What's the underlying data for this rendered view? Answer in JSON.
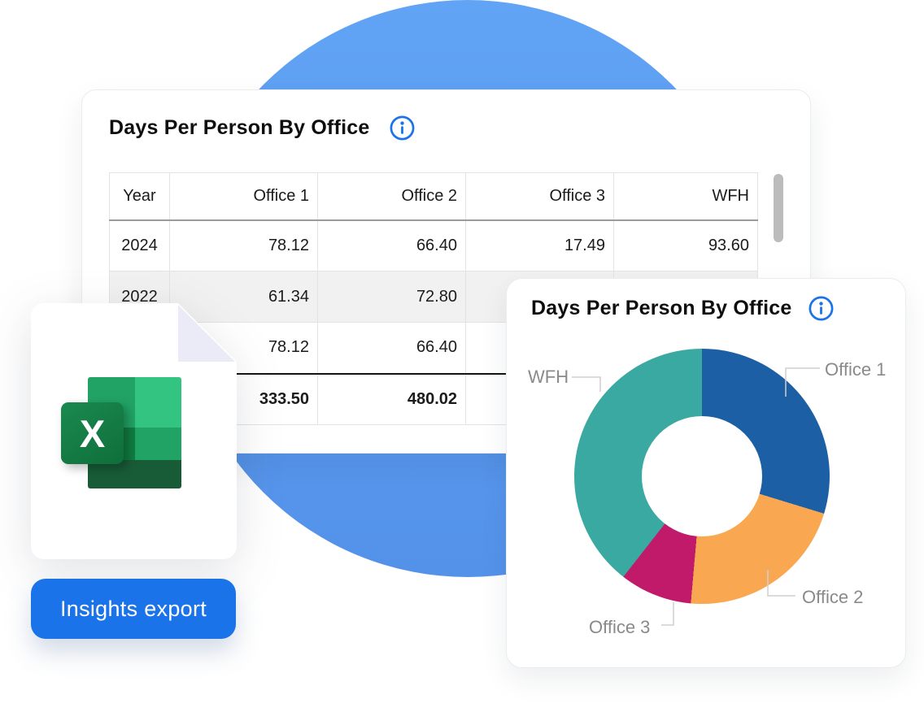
{
  "table_card": {
    "title": "Days Per Person By Office",
    "table": {
      "headers": [
        "Year",
        "Office 1",
        "Office 2",
        "Office 3",
        "WFH"
      ],
      "rows": [
        {
          "cells": [
            "2024",
            "78.12",
            "66.40",
            "17.49",
            "93.60"
          ],
          "zebra": false,
          "total": false
        },
        {
          "cells": [
            "2022",
            "61.34",
            "72.80",
            "",
            ""
          ],
          "zebra": true,
          "total": false
        },
        {
          "cells": [
            "",
            "78.12",
            "66.40",
            "",
            ""
          ],
          "zebra": false,
          "total": false
        },
        {
          "cells": [
            "",
            "333.50",
            "480.02",
            "",
            ""
          ],
          "zebra": false,
          "total": true
        }
      ]
    }
  },
  "chart_card": {
    "title": "Days Per Person By Office"
  },
  "chart_data": {
    "type": "pie",
    "donut": true,
    "title": "Days Per Person By Office",
    "start_angle_deg": 0,
    "legend_position": "outside-labels",
    "segments": [
      {
        "label": "Office 1",
        "color": "#1d5fa5",
        "angle_deg": 107,
        "percent": 29.7
      },
      {
        "label": "Office 2",
        "color": "#f9a851",
        "angle_deg": 78,
        "percent": 21.7
      },
      {
        "label": "Office 3",
        "color": "#c21a6b",
        "angle_deg": 33,
        "percent": 9.2
      },
      {
        "label": "WFH",
        "color": "#3aa9a1",
        "angle_deg": 142,
        "percent": 39.4
      }
    ]
  },
  "export_button": {
    "label": "Insights export"
  },
  "file_card": {
    "letter": "X"
  },
  "colors": {
    "background_circle": "#5b9bf0",
    "button_blue": "#1a73e8",
    "info_icon_blue": "#1a73e8",
    "zebra_row": "#f1f1f1",
    "label_gray": "#8a8a8a",
    "excel_dark_green": "#185c37",
    "excel_mid_green": "#21a366",
    "excel_light_green": "#33c481",
    "excel_tile_green": "#107c41"
  }
}
